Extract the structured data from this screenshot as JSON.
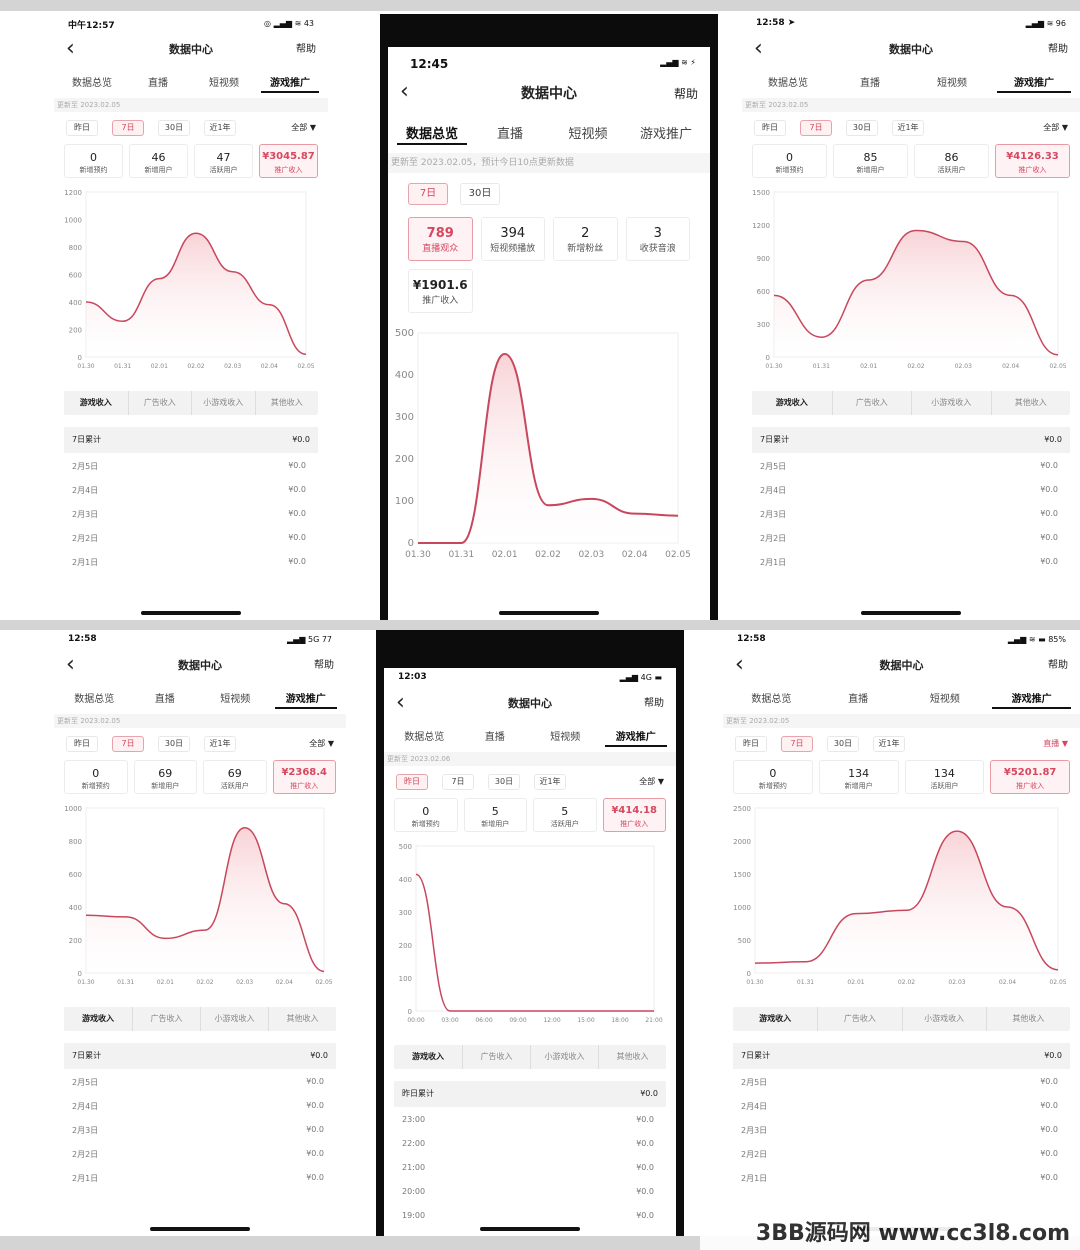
{
  "watermark": "3BB源码网 www.cc3l8.com",
  "screens": [
    {
      "id": "s1",
      "status_time": "中午12:57",
      "status_icons": "◎ ▂▄▆ ≋ 43",
      "title": "数据中心",
      "help_label": "帮助",
      "tabs": [
        {
          "label": "数据总览"
        },
        {
          "label": "直播"
        },
        {
          "label": "短视频"
        },
        {
          "label": "游戏推广",
          "active": true
        }
      ],
      "update_text": "更新至 2023.02.05",
      "date_chips": [
        {
          "label": "昨日"
        },
        {
          "label": "7日",
          "active": true
        },
        {
          "label": "30日"
        },
        {
          "label": "近1年"
        }
      ],
      "filter_label": "全部 ▼",
      "cards": [
        {
          "value": "0",
          "label": "新增预约"
        },
        {
          "value": "46",
          "label": "新增用户"
        },
        {
          "value": "47",
          "label": "活跃用户"
        },
        {
          "value": "¥3045.87",
          "label": "推广收入",
          "active": true
        }
      ],
      "sub_tabs": [
        {
          "label": "游戏收入",
          "active": true
        },
        {
          "label": "广告收入"
        },
        {
          "label": "小游戏收入"
        },
        {
          "label": "其他收入"
        }
      ],
      "summary": {
        "label": "7日累计",
        "value": "¥0.0"
      },
      "rows": [
        {
          "date": "2月5日",
          "value": "¥0.0"
        },
        {
          "date": "2月4日",
          "value": "¥0.0"
        },
        {
          "date": "2月3日",
          "value": "¥0.0"
        },
        {
          "date": "2月2日",
          "value": "¥0.0"
        },
        {
          "date": "2月1日",
          "value": "¥0.0"
        }
      ],
      "chart_data": {
        "type": "area",
        "x": [
          "01.30",
          "01.31",
          "02.01",
          "02.02",
          "02.03",
          "02.04",
          "02.05"
        ],
        "ylim": [
          0,
          1200
        ],
        "yticks": [
          "1200",
          "1000",
          "800",
          "600",
          "400",
          "200",
          "0"
        ],
        "series": [
          {
            "values": [
              400,
              260,
              570,
              900,
              620,
              380,
              20
            ]
          }
        ]
      }
    },
    {
      "id": "s2",
      "status_time": "12:45",
      "status_icons": "▂▄▆ ≋ ⚡",
      "title": "数据中心",
      "help_label": "帮助",
      "tabs": [
        {
          "label": "数据总览",
          "active": true
        },
        {
          "label": "直播"
        },
        {
          "label": "短视频"
        },
        {
          "label": "游戏推广"
        }
      ],
      "update_text": "更新至 2023.02.05，预计今日10点更新数据",
      "date_chips": [
        {
          "label": "7日",
          "active": true
        },
        {
          "label": "30日"
        }
      ],
      "cards": [
        {
          "value": "789",
          "label": "直播观众",
          "active": true
        },
        {
          "value": "394",
          "label": "短视频播放"
        },
        {
          "value": "2",
          "label": "新增粉丝"
        },
        {
          "value": "3",
          "label": "收获音浪"
        }
      ],
      "extra_card": {
        "value": "¥1901.6",
        "label": "推广收入"
      },
      "chart_data": {
        "type": "area",
        "x": [
          "01.30",
          "01.31",
          "02.01",
          "02.02",
          "02.03",
          "02.04",
          "02.05"
        ],
        "ylim": [
          0,
          500
        ],
        "yticks": [
          "500",
          "400",
          "300",
          "200",
          "100",
          "0"
        ],
        "series": [
          {
            "values": [
              0,
              0,
              450,
              90,
              105,
              70,
              65
            ]
          }
        ]
      }
    },
    {
      "id": "s3",
      "status_time": "12:58 ➤",
      "status_icons": "▂▄▆ ≋ 96",
      "title": "数据中心",
      "help_label": "帮助",
      "tabs": [
        {
          "label": "数据总览"
        },
        {
          "label": "直播"
        },
        {
          "label": "短视频"
        },
        {
          "label": "游戏推广",
          "active": true
        }
      ],
      "update_text": "更新至 2023.02.05",
      "date_chips": [
        {
          "label": "昨日"
        },
        {
          "label": "7日",
          "active": true
        },
        {
          "label": "30日"
        },
        {
          "label": "近1年"
        }
      ],
      "filter_label": "全部 ▼",
      "cards": [
        {
          "value": "0",
          "label": "新增预约"
        },
        {
          "value": "85",
          "label": "新增用户"
        },
        {
          "value": "86",
          "label": "活跃用户"
        },
        {
          "value": "¥4126.33",
          "label": "推广收入",
          "active": true
        }
      ],
      "sub_tabs": [
        {
          "label": "游戏收入",
          "active": true
        },
        {
          "label": "广告收入"
        },
        {
          "label": "小游戏收入"
        },
        {
          "label": "其他收入"
        }
      ],
      "summary": {
        "label": "7日累计",
        "value": "¥0.0"
      },
      "rows": [
        {
          "date": "2月5日",
          "value": "¥0.0"
        },
        {
          "date": "2月4日",
          "value": "¥0.0"
        },
        {
          "date": "2月3日",
          "value": "¥0.0"
        },
        {
          "date": "2月2日",
          "value": "¥0.0"
        },
        {
          "date": "2月1日",
          "value": "¥0.0"
        }
      ],
      "chart_data": {
        "type": "area",
        "x": [
          "01.30",
          "01.31",
          "02.01",
          "02.02",
          "02.03",
          "02.04",
          "02.05"
        ],
        "ylim": [
          0,
          1500
        ],
        "yticks": [
          "1500",
          "1200",
          "900",
          "600",
          "300",
          "0"
        ],
        "series": [
          {
            "values": [
              560,
              180,
              700,
              1150,
              1050,
              560,
              20
            ]
          }
        ]
      }
    },
    {
      "id": "s4",
      "status_time": "12:58",
      "status_icons": "▂▄▆ 5G 77",
      "title": "数据中心",
      "help_label": "帮助",
      "tabs": [
        {
          "label": "数据总览"
        },
        {
          "label": "直播"
        },
        {
          "label": "短视频"
        },
        {
          "label": "游戏推广",
          "active": true
        }
      ],
      "update_text": "更新至 2023.02.05",
      "date_chips": [
        {
          "label": "昨日"
        },
        {
          "label": "7日",
          "active": true
        },
        {
          "label": "30日"
        },
        {
          "label": "近1年"
        }
      ],
      "filter_label": "全部 ▼",
      "cards": [
        {
          "value": "0",
          "label": "新增预约"
        },
        {
          "value": "69",
          "label": "新增用户"
        },
        {
          "value": "69",
          "label": "活跃用户"
        },
        {
          "value": "¥2368.4",
          "label": "推广收入",
          "active": true
        }
      ],
      "sub_tabs": [
        {
          "label": "游戏收入",
          "active": true
        },
        {
          "label": "广告收入"
        },
        {
          "label": "小游戏收入"
        },
        {
          "label": "其他收入"
        }
      ],
      "summary": {
        "label": "7日累计",
        "value": "¥0.0"
      },
      "rows": [
        {
          "date": "2月5日",
          "value": "¥0.0"
        },
        {
          "date": "2月4日",
          "value": "¥0.0"
        },
        {
          "date": "2月3日",
          "value": "¥0.0"
        },
        {
          "date": "2月2日",
          "value": "¥0.0"
        },
        {
          "date": "2月1日",
          "value": "¥0.0"
        }
      ],
      "chart_data": {
        "type": "area",
        "x": [
          "01.30",
          "01.31",
          "02.01",
          "02.02",
          "02.03",
          "02.04",
          "02.05"
        ],
        "ylim": [
          0,
          1000
        ],
        "yticks": [
          "1000",
          "800",
          "600",
          "400",
          "200",
          "0"
        ],
        "series": [
          {
            "values": [
              350,
              340,
              210,
              260,
              880,
              420,
              10
            ]
          }
        ]
      }
    },
    {
      "id": "s5",
      "status_time": "12:03",
      "status_icons": "▂▄▆ 4G ▬",
      "title": "数据中心",
      "help_label": "帮助",
      "tabs": [
        {
          "label": "数据总览"
        },
        {
          "label": "直播"
        },
        {
          "label": "短视频"
        },
        {
          "label": "游戏推广",
          "active": true
        }
      ],
      "update_text": "更新至 2023.02.06",
      "date_chips": [
        {
          "label": "昨日",
          "active": true
        },
        {
          "label": "7日"
        },
        {
          "label": "30日"
        },
        {
          "label": "近1年"
        }
      ],
      "filter_label": "全部 ▼",
      "cards": [
        {
          "value": "0",
          "label": "新增预约"
        },
        {
          "value": "5",
          "label": "新增用户"
        },
        {
          "value": "5",
          "label": "活跃用户"
        },
        {
          "value": "¥414.18",
          "label": "推广收入",
          "active": true
        }
      ],
      "sub_tabs": [
        {
          "label": "游戏收入",
          "active": true
        },
        {
          "label": "广告收入"
        },
        {
          "label": "小游戏收入"
        },
        {
          "label": "其他收入"
        }
      ],
      "summary": {
        "label": "昨日累计",
        "value": "¥0.0"
      },
      "rows": [
        {
          "date": "23:00",
          "value": "¥0.0"
        },
        {
          "date": "22:00",
          "value": "¥0.0"
        },
        {
          "date": "21:00",
          "value": "¥0.0"
        },
        {
          "date": "20:00",
          "value": "¥0.0"
        },
        {
          "date": "19:00",
          "value": "¥0.0"
        }
      ],
      "chart_data": {
        "type": "line",
        "x": [
          "00:00",
          "03:00",
          "06:00",
          "09:00",
          "12:00",
          "15:00",
          "18:00",
          "21:00"
        ],
        "ylim": [
          0,
          500
        ],
        "yticks": [
          "500",
          "400",
          "300",
          "200",
          "100",
          "0"
        ],
        "series": [
          {
            "values": [
              414,
              0,
              0,
              0,
              0,
              0,
              0,
              0
            ]
          }
        ]
      }
    },
    {
      "id": "s6",
      "status_time": "12:58",
      "status_icons": "▂▄▆ ≋ ▬ 85%",
      "title": "数据中心",
      "help_label": "帮助",
      "tabs": [
        {
          "label": "数据总览"
        },
        {
          "label": "直播"
        },
        {
          "label": "短视频"
        },
        {
          "label": "游戏推广",
          "active": true
        }
      ],
      "update_text": "更新至 2023.02.05",
      "date_chips": [
        {
          "label": "昨日"
        },
        {
          "label": "7日",
          "active": true
        },
        {
          "label": "30日"
        },
        {
          "label": "近1年"
        }
      ],
      "filter_label": "直播 ▼",
      "filter_accent": true,
      "cards": [
        {
          "value": "0",
          "label": "新增预约"
        },
        {
          "value": "134",
          "label": "新增用户"
        },
        {
          "value": "134",
          "label": "活跃用户"
        },
        {
          "value": "¥5201.87",
          "label": "推广收入",
          "active": true
        }
      ],
      "sub_tabs": [
        {
          "label": "游戏收入",
          "active": true
        },
        {
          "label": "广告收入"
        },
        {
          "label": "小游戏收入"
        },
        {
          "label": "其他收入"
        }
      ],
      "summary": {
        "label": "7日累计",
        "value": "¥0.0"
      },
      "rows": [
        {
          "date": "2月5日",
          "value": "¥0.0"
        },
        {
          "date": "2月4日",
          "value": "¥0.0"
        },
        {
          "date": "2月3日",
          "value": "¥0.0"
        },
        {
          "date": "2月2日",
          "value": "¥0.0"
        },
        {
          "date": "2月1日",
          "value": "¥0.0"
        }
      ],
      "chart_data": {
        "type": "area",
        "x": [
          "01.30",
          "01.31",
          "02.01",
          "02.02",
          "02.03",
          "02.04",
          "02.05"
        ],
        "ylim": [
          0,
          2500
        ],
        "yticks": [
          "2500",
          "2000",
          "1500",
          "1000",
          "500",
          "0"
        ],
        "series": [
          {
            "values": [
              150,
              170,
              900,
              950,
              2150,
              1000,
              50
            ]
          }
        ]
      }
    }
  ]
}
